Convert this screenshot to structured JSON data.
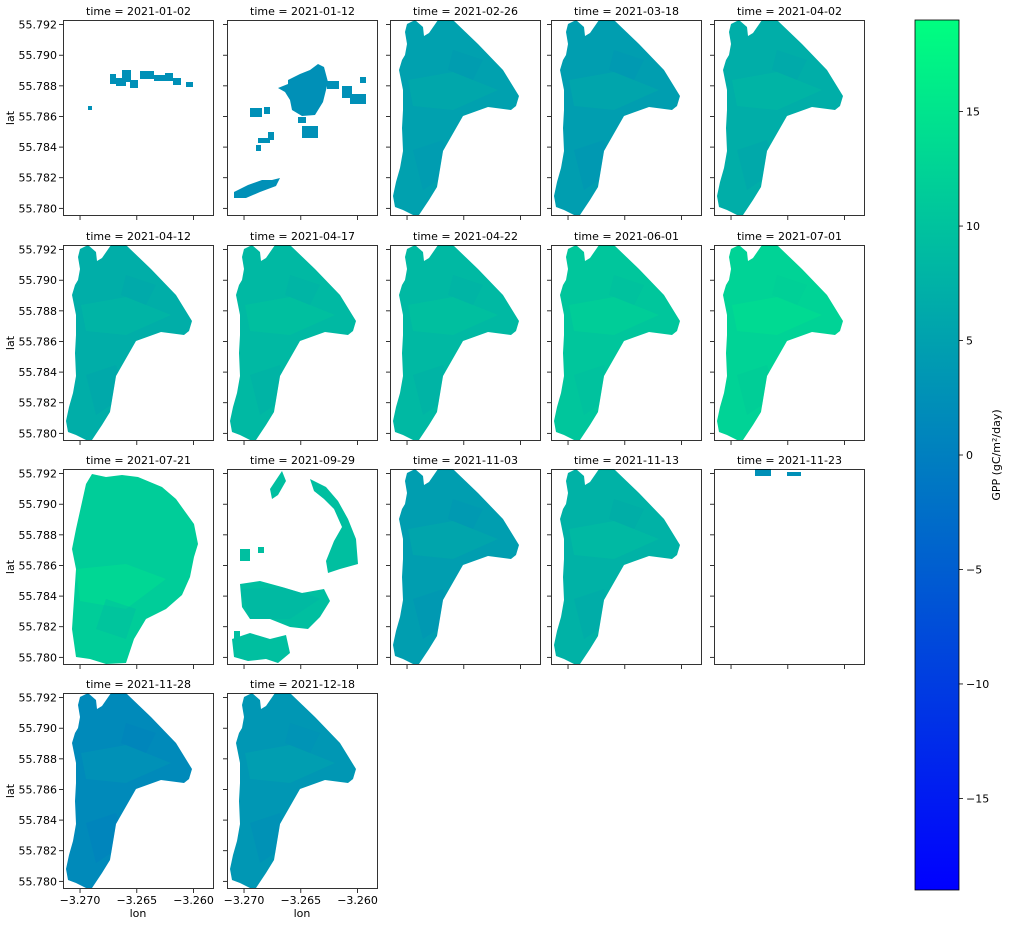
{
  "chart_data": {
    "type": "heatmap",
    "layout": "faceted small multiples",
    "variable": "GPP",
    "facet_titles": [
      "time = 2021-01-02",
      "time = 2021-01-12",
      "time = 2021-02-26",
      "time = 2021-03-18",
      "time = 2021-04-02",
      "time = 2021-04-12",
      "time = 2021-04-17",
      "time = 2021-04-22",
      "time = 2021-06-01",
      "time = 2021-07-01",
      "time = 2021-07-21",
      "time = 2021-09-29",
      "time = 2021-11-03",
      "time = 2021-11-13",
      "time = 2021-11-23",
      "time = 2021-11-28",
      "time = 2021-12-18"
    ],
    "facet_mean_values": [
      2.5,
      2.5,
      5.0,
      4.5,
      7.0,
      7.0,
      8.5,
      8.5,
      10.5,
      12.5,
      11.5,
      9.5,
      4.5,
      7.5,
      2.5,
      1.5,
      3.5
    ],
    "facet_coverage": [
      "partial",
      "partial",
      "full",
      "full",
      "full",
      "full",
      "full",
      "full",
      "full",
      "full",
      "partial",
      "partial",
      "full",
      "full",
      "partial",
      "full",
      "full"
    ],
    "xlabel": "lon",
    "ylabel": "lat",
    "xlim": [
      -3.2715,
      -3.2582
    ],
    "ylim": [
      55.7795,
      55.7923
    ],
    "x_ticks": [
      -3.27,
      -3.265,
      -3.26
    ],
    "x_tick_labels": [
      "−3.270",
      "−3.265",
      "−3.260"
    ],
    "y_ticks": [
      55.78,
      55.782,
      55.784,
      55.786,
      55.788,
      55.79,
      55.792
    ],
    "y_tick_labels": [
      "55.780",
      "55.782",
      "55.784",
      "55.786",
      "55.788",
      "55.790",
      "55.792"
    ],
    "colorbar": {
      "label": "GPP (gC/m²/day)",
      "range": [
        -19,
        19
      ],
      "ticks": [
        15,
        10,
        5,
        0,
        -5,
        -10,
        -15
      ],
      "tick_labels": [
        "15",
        "10",
        "5",
        "0",
        "−5",
        "−10",
        "−15"
      ],
      "colormap": "winter",
      "color_low": "#0000ff",
      "color_high": "#00ff80"
    },
    "grid": false,
    "legend": "colorbar at right"
  }
}
